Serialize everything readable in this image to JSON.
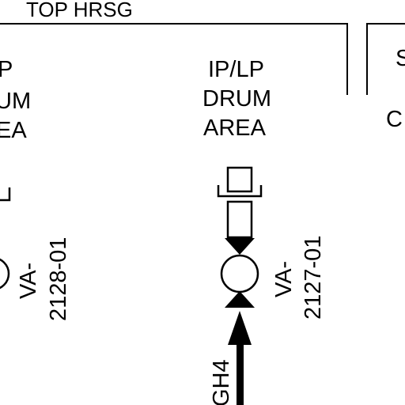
{
  "section_title": "TOP HRSG",
  "left_area": {
    "lines": [
      "P",
      "UM",
      "EA"
    ]
  },
  "center_area": {
    "lines": [
      "IP/LP",
      "DRUM",
      "AREA"
    ]
  },
  "right_area": {
    "lines": [
      "S",
      "C"
    ]
  },
  "valves": [
    {
      "tag_prefix": "VA-",
      "tag_number": "2128-01"
    },
    {
      "tag_prefix": "VA-",
      "tag_number": "2127-01"
    }
  ],
  "pipe_label": "GH4"
}
